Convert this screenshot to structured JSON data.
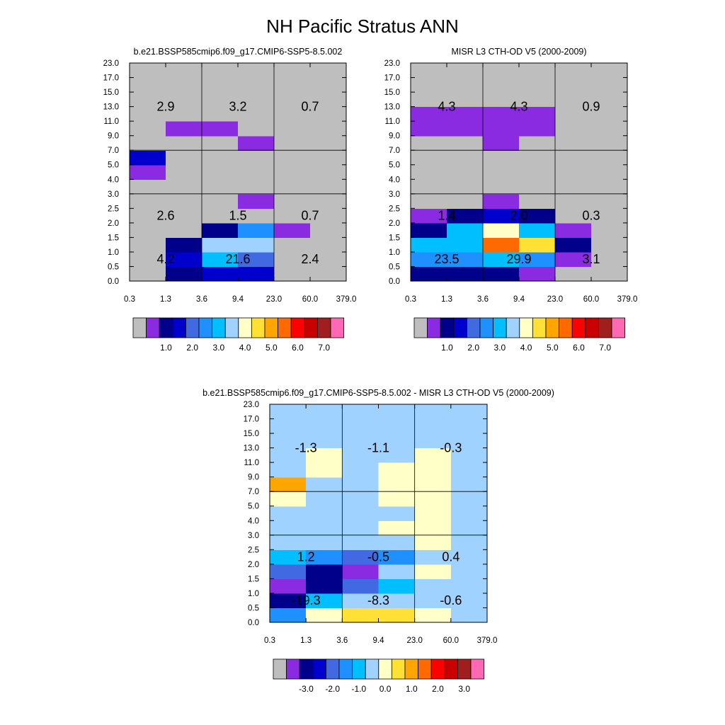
{
  "figure": {
    "title": "NH Pacific Stratus ANN"
  },
  "colors": {
    "missing": "#bebebe",
    "palette": [
      "#bebebe",
      "#8a2be2",
      "#00008b",
      "#0000cd",
      "#4169e1",
      "#1e90ff",
      "#00bfff",
      "#a0d2ff",
      "#ffffc8",
      "#ffe135",
      "#ffa500",
      "#ff6a00",
      "#ff0000",
      "#c80000",
      "#a01e1e",
      "#ff69b4"
    ]
  },
  "chart_data": [
    {
      "type": "heatmap",
      "title": "b.e21.BSSP585cmip6.f09_g17.CMIP6-SSP5-8.5.002",
      "x_ticks": [
        "0.3",
        "1.3",
        "3.6",
        "9.4",
        "23.0",
        "60.0",
        "379.0"
      ],
      "y_ticks": [
        "0.0",
        "0.5",
        "1.0",
        "1.5",
        "2.0",
        "2.5",
        "3.0",
        "4.0",
        "5.0",
        "7.0",
        "9.0",
        "11.0",
        "13.0",
        "15.0",
        "17.0",
        "23.0"
      ],
      "colorbar_labels": [
        "1.0",
        "2.0",
        "3.0",
        "4.0",
        "5.0",
        "6.0",
        "7.0"
      ],
      "grid": [
        [
          0,
          2,
          3,
          3,
          0,
          0
        ],
        [
          0,
          3,
          6,
          4,
          0,
          0
        ],
        [
          0,
          2,
          7,
          7,
          0,
          0
        ],
        [
          0,
          0,
          2,
          5,
          1,
          0
        ],
        [
          0,
          0,
          0,
          0,
          0,
          0
        ],
        [
          0,
          0,
          0,
          1,
          0,
          0
        ],
        [
          0,
          0,
          0,
          0,
          0,
          0
        ],
        [
          1,
          0,
          0,
          0,
          0,
          0
        ],
        [
          3,
          0,
          0,
          0,
          0,
          0
        ],
        [
          0,
          0,
          0,
          1,
          0,
          0
        ],
        [
          0,
          1,
          1,
          0,
          0,
          0
        ],
        [
          0,
          0,
          0,
          0,
          0,
          0
        ],
        [
          0,
          0,
          0,
          0,
          0,
          0
        ],
        [
          0,
          0,
          0,
          0,
          0,
          0
        ],
        [
          0,
          0,
          0,
          0,
          0,
          0
        ]
      ],
      "block_values": [
        [
          "2.9",
          "3.2",
          "0.7"
        ],
        [
          "2.6",
          "1.5",
          "0.7"
        ],
        [
          "4.2",
          "21.6",
          "2.4"
        ]
      ]
    },
    {
      "type": "heatmap",
      "title": "MISR L3 CTH-OD V5 (2000-2009)",
      "x_ticks": [
        "0.3",
        "1.3",
        "3.6",
        "9.4",
        "23.0",
        "60.0",
        "379.0"
      ],
      "y_ticks": [
        "0.0",
        "0.5",
        "1.0",
        "1.5",
        "2.0",
        "2.5",
        "3.0",
        "4.0",
        "5.0",
        "7.0",
        "9.0",
        "11.0",
        "13.0",
        "15.0",
        "17.0",
        "23.0"
      ],
      "colorbar_labels": [
        "1.0",
        "2.0",
        "3.0",
        "4.0",
        "5.0",
        "6.0",
        "7.0"
      ],
      "grid": [
        [
          2,
          2,
          2,
          1,
          0,
          0
        ],
        [
          5,
          5,
          6,
          5,
          1,
          0
        ],
        [
          6,
          6,
          11,
          9,
          2,
          0
        ],
        [
          2,
          6,
          8,
          6,
          1,
          0
        ],
        [
          1,
          2,
          3,
          2,
          0,
          0
        ],
        [
          0,
          0,
          1,
          0,
          0,
          0
        ],
        [
          0,
          0,
          0,
          0,
          0,
          0
        ],
        [
          0,
          0,
          0,
          0,
          0,
          0
        ],
        [
          0,
          0,
          0,
          0,
          0,
          0
        ],
        [
          0,
          0,
          1,
          0,
          0,
          0
        ],
        [
          1,
          1,
          1,
          1,
          0,
          0
        ],
        [
          1,
          1,
          1,
          1,
          0,
          0
        ],
        [
          0,
          0,
          0,
          0,
          0,
          0
        ],
        [
          0,
          0,
          0,
          0,
          0,
          0
        ],
        [
          0,
          0,
          0,
          0,
          0,
          0
        ]
      ],
      "block_values": [
        [
          "4.3",
          "4.3",
          "0.9"
        ],
        [
          "1.4",
          "2.0",
          "0.3"
        ],
        [
          "23.5",
          "29.9",
          "3.1"
        ]
      ]
    },
    {
      "type": "heatmap",
      "title": "b.e21.BSSP585cmip6.f09_g17.CMIP6-SSP5-8.5.002 - MISR L3 CTH-OD V5 (2000-2009)",
      "x_ticks": [
        "0.3",
        "1.3",
        "3.6",
        "9.4",
        "23.0",
        "60.0",
        "379.0"
      ],
      "y_ticks": [
        "0.0",
        "0.5",
        "1.0",
        "1.5",
        "2.0",
        "2.5",
        "3.0",
        "4.0",
        "5.0",
        "7.0",
        "9.0",
        "11.0",
        "13.0",
        "15.0",
        "17.0",
        "23.0"
      ],
      "colorbar_labels": [
        "-3.0",
        "-2.0",
        "-1.0",
        "0.0",
        "1.0",
        "2.0",
        "3.0"
      ],
      "grid": [
        [
          5,
          8,
          9,
          9,
          8,
          7
        ],
        [
          2,
          6,
          7,
          7,
          7,
          7
        ],
        [
          1,
          2,
          4,
          6,
          7,
          7
        ],
        [
          4,
          2,
          1,
          7,
          8,
          7
        ],
        [
          6,
          5,
          4,
          5,
          7,
          7
        ],
        [
          7,
          7,
          7,
          7,
          8,
          7
        ],
        [
          7,
          7,
          7,
          8,
          8,
          7
        ],
        [
          7,
          7,
          7,
          7,
          8,
          7
        ],
        [
          8,
          7,
          7,
          8,
          8,
          7
        ],
        [
          10,
          7,
          7,
          8,
          8,
          7
        ],
        [
          7,
          8,
          7,
          8,
          8,
          7
        ],
        [
          7,
          8,
          7,
          7,
          8,
          7
        ],
        [
          7,
          7,
          7,
          7,
          7,
          7
        ],
        [
          7,
          7,
          7,
          7,
          7,
          7
        ],
        [
          7,
          7,
          7,
          7,
          7,
          7
        ]
      ],
      "block_values": [
        [
          "-1.3",
          "-1.1",
          "-0.3"
        ],
        [
          "1.2",
          "-0.5",
          "0.4"
        ],
        [
          "-19.3",
          "-8.3",
          "-0.6"
        ]
      ]
    }
  ]
}
